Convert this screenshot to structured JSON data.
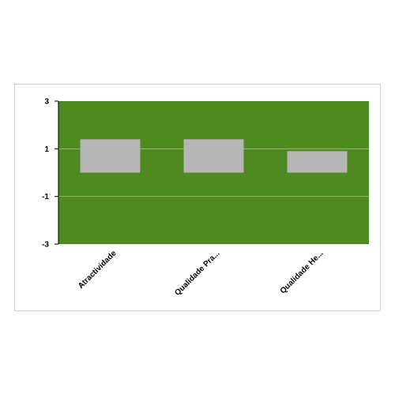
{
  "chart_data": {
    "type": "bar",
    "categories": [
      "Atractividade",
      "Qualidade Pra...",
      "Qualidade He..."
    ],
    "values": [
      1.4,
      1.4,
      0.9
    ],
    "base": 0,
    "yticks": [
      "3",
      "1",
      "-1",
      "-3"
    ],
    "ylim": [
      -3,
      3
    ],
    "grid": true,
    "legend": "none",
    "colors": {
      "plot_background": "#4e8a1f",
      "bar": "#b5b5b5",
      "gridline": "#8fbf6a",
      "axis": "#000000"
    }
  }
}
